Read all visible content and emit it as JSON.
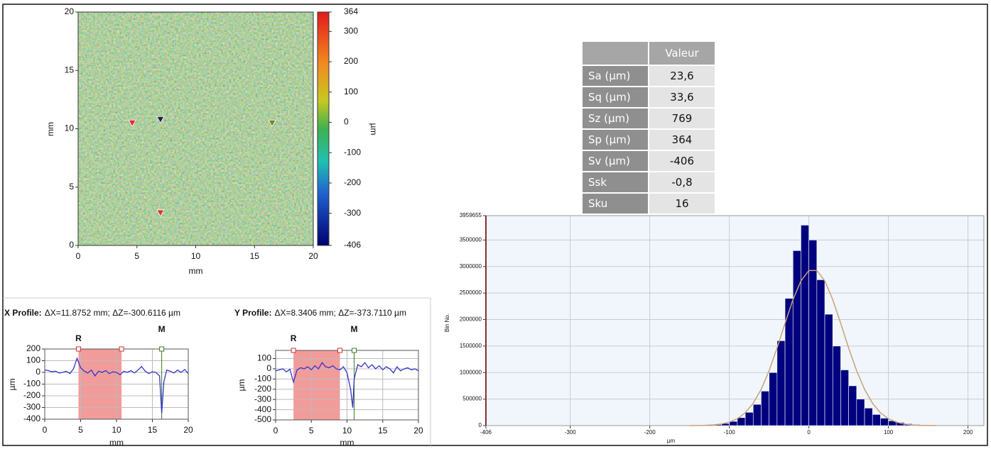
{
  "chart_data": [
    {
      "type": "heatmap",
      "xlabel": "mm",
      "ylabel": "mm",
      "zlabel": "µm",
      "xlim": [
        0,
        20
      ],
      "ylim": [
        0,
        20
      ],
      "xticks": [
        0,
        5,
        10,
        15,
        20
      ],
      "yticks": [
        0,
        5,
        10,
        15,
        20
      ],
      "zlim": [
        -406,
        364
      ],
      "zticks": [
        364,
        300,
        200,
        100,
        0,
        -100,
        -200,
        -300,
        -406
      ],
      "points": [
        {
          "x": 4.6,
          "y": 10.5,
          "color": "#e03030"
        },
        {
          "x": 7.0,
          "y": 2.8,
          "color": "#e03030"
        },
        {
          "x": 7.0,
          "y": 10.8,
          "color": "#202040"
        },
        {
          "x": 16.5,
          "y": 10.5,
          "color": "#808020"
        }
      ]
    },
    {
      "type": "profile",
      "title": "X Profile:",
      "subtitle": "ΔX=11.8752 mm; ΔZ=-300.6116 µm",
      "xlabel": "mm",
      "ylabel": "µm",
      "color": "#3535c8",
      "grid": true,
      "xlim": [
        0,
        20
      ],
      "ylim": [
        -400,
        200
      ],
      "xticks": [
        0,
        5,
        10,
        15,
        20
      ],
      "yticks": [
        200,
        100,
        0,
        -100,
        -200,
        -300,
        -400
      ],
      "region": [
        4.7,
        10.7
      ],
      "markers": [
        {
          "label": "R",
          "x": 4.7,
          "color": "#d03030"
        },
        {
          "label": "M",
          "x": 16.3,
          "color": "#3a7a20"
        }
      ],
      "x": [
        0,
        0.5,
        1,
        1.5,
        2,
        2.5,
        3,
        3.5,
        4,
        4.5,
        5,
        5.5,
        6,
        6.5,
        7,
        7.5,
        8,
        8.5,
        9,
        9.5,
        10,
        10.5,
        11,
        11.5,
        12,
        12.5,
        13,
        13.5,
        14,
        14.5,
        15,
        15.5,
        16,
        16.3,
        16.6,
        17,
        17.5,
        18,
        18.5,
        19,
        19.5,
        20
      ],
      "values": [
        20,
        15,
        5,
        10,
        -5,
        0,
        10,
        -10,
        30,
        120,
        40,
        10,
        -5,
        20,
        -30,
        10,
        0,
        15,
        -10,
        5,
        0,
        -20,
        10,
        0,
        15,
        -5,
        20,
        50,
        10,
        -10,
        5,
        0,
        -30,
        -350,
        -80,
        20,
        10,
        -5,
        20,
        0,
        25,
        -10
      ]
    },
    {
      "type": "profile",
      "title": "Y Profile:",
      "subtitle": "ΔX=8.3406 mm; ΔZ=-373.7110 µm",
      "xlabel": "mm",
      "ylabel": "µm",
      "color": "#3535c8",
      "grid": true,
      "xlim": [
        0,
        20
      ],
      "ylim": [
        -500,
        180
      ],
      "xticks": [
        0,
        5,
        10,
        15,
        20
      ],
      "yticks": [
        100,
        0,
        -100,
        -200,
        -300,
        -400,
        -500
      ],
      "region": [
        2.5,
        9.0
      ],
      "markers": [
        {
          "label": "R",
          "x": 2.5,
          "color": "#d03030"
        },
        {
          "label": "M",
          "x": 11.0,
          "color": "#3a7a20"
        }
      ],
      "x": [
        0,
        0.5,
        1,
        1.5,
        2,
        2.5,
        3,
        3.5,
        4,
        4.5,
        5,
        5.5,
        6,
        6.5,
        7,
        7.5,
        8,
        8.5,
        9,
        9.5,
        10,
        10.5,
        10.8,
        11,
        11.5,
        12,
        12.5,
        13,
        13.5,
        14,
        14.5,
        15,
        15.5,
        16,
        16.5,
        17,
        17.5,
        18,
        18.5,
        19,
        19.5,
        20
      ],
      "values": [
        -20,
        -10,
        0,
        -30,
        -5,
        -130,
        -10,
        10,
        0,
        20,
        -10,
        30,
        0,
        60,
        20,
        10,
        30,
        0,
        -10,
        20,
        -40,
        -200,
        -380,
        -100,
        40,
        20,
        60,
        10,
        40,
        0,
        30,
        -10,
        20,
        0,
        -40,
        20,
        -20,
        0,
        10,
        -10,
        0,
        -20
      ]
    },
    {
      "type": "histogram",
      "xlabel": "µm",
      "ylabel": "Bin No.",
      "color": "#00007f",
      "grid": true,
      "xlim": [
        -406,
        220
      ],
      "ylim": [
        0,
        3959655
      ],
      "xticks": [
        -406,
        -300,
        -200,
        -100,
        0,
        100,
        200
      ],
      "yticks": [
        0,
        500000,
        1000000,
        1500000,
        2000000,
        2500000,
        3000000,
        3500000,
        3959655
      ],
      "bins": [
        -120,
        -110,
        -100,
        -90,
        -80,
        -70,
        -60,
        -50,
        -40,
        -30,
        -20,
        -10,
        0,
        10,
        20,
        30,
        40,
        50,
        60,
        70,
        80,
        90,
        100,
        110,
        120,
        130,
        140
      ],
      "values": [
        20000,
        40000,
        80000,
        150000,
        250000,
        400000,
        650000,
        1000000,
        1600000,
        2400000,
        3300000,
        3780000,
        3500000,
        2750000,
        2100000,
        1500000,
        1050000,
        750000,
        500000,
        330000,
        210000,
        140000,
        90000,
        60000,
        35000,
        20000
      ],
      "fit": {
        "color": "#c8a27a",
        "x": [
          -150,
          -140,
          -130,
          -120,
          -110,
          -100,
          -90,
          -80,
          -70,
          -60,
          -50,
          -40,
          -30,
          -20,
          -10,
          0,
          10,
          20,
          30,
          40,
          50,
          60,
          70,
          80,
          90,
          100,
          110,
          120,
          130,
          140,
          150,
          160
        ],
        "values": [
          720,
          2000,
          5400,
          13200,
          30300,
          64700,
          129600,
          241400,
          420600,
          683300,
          1035000,
          1463000,
          1930000,
          2376000,
          2729000,
          2925000,
          2925000,
          2729000,
          2376000,
          1930000,
          1463000,
          1035000,
          683300,
          420600,
          241400,
          129600,
          64700,
          30300,
          13200,
          5400,
          2000,
          720
        ]
      }
    }
  ],
  "table": {
    "column_header": "Valeur",
    "rows": [
      [
        "Sa (µm)",
        "23,6"
      ],
      [
        "Sq (µm)",
        "33,6"
      ],
      [
        "Sz (µm)",
        "769"
      ],
      [
        "Sp (µm)",
        "364"
      ],
      [
        "Sv (µm)",
        "-406"
      ],
      [
        "Ssk",
        "-0,8"
      ],
      [
        "Sku",
        "16"
      ]
    ]
  }
}
